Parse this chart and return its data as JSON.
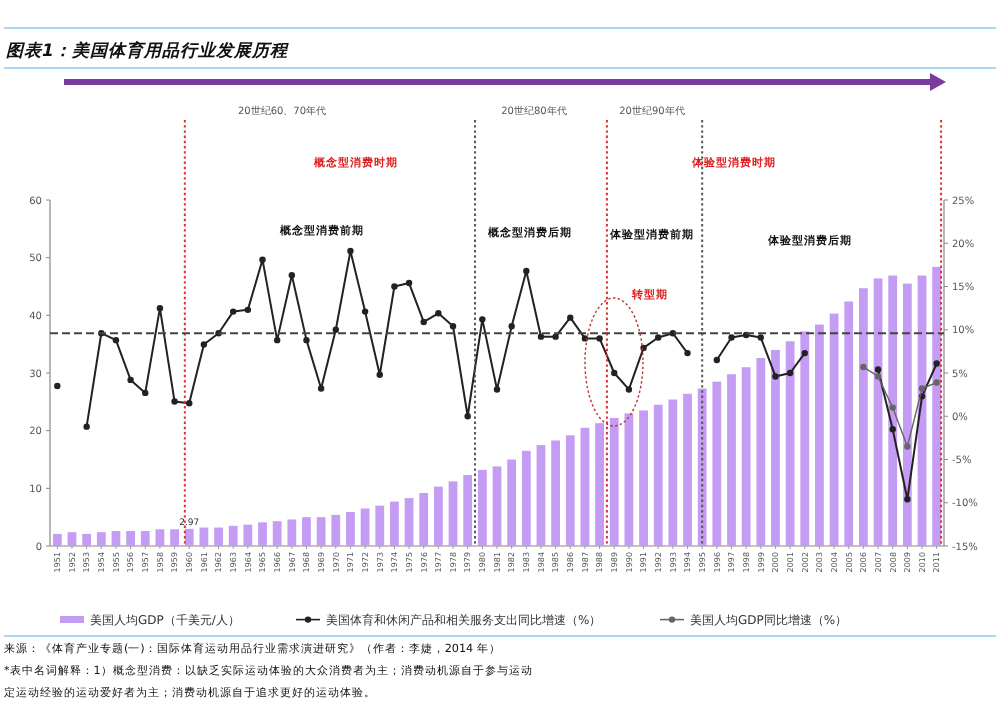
{
  "chart_data": {
    "type": "bar",
    "title": "图表1：美国体育用品行业发展历程",
    "annotations": [
      "20世纪60、70年代",
      "20世纪80年代",
      "20世纪90年代",
      "概念型消费时期",
      "体验型消费时期",
      "概念型消费前期",
      "概念型消费后期",
      "体验型消费前期",
      "体验型消费后期",
      "转型期",
      "来源：《体育产业专题(一)：国际体育运动用品行业需求演进研究》（作者：李婕，2014 年）",
      "*表中名词解释：1）概念型消费：以缺乏实际运动体验的大众消费者为主；消费动机源自于参与运动",
      "定运动经验的运动爱好者为主；消费动机源自于追求更好的运动体验。"
    ],
    "x": [
      1951,
      1952,
      1953,
      1954,
      1955,
      1956,
      1957,
      1958,
      1959,
      1960,
      1961,
      1962,
      1963,
      1964,
      1965,
      1966,
      1967,
      1968,
      1969,
      1970,
      1971,
      1972,
      1973,
      1974,
      1975,
      1976,
      1977,
      1978,
      1979,
      1980,
      1981,
      1982,
      1983,
      1984,
      1985,
      1986,
      1987,
      1988,
      1989,
      1990,
      1991,
      1992,
      1993,
      1994,
      1995,
      1996,
      1997,
      1998,
      1999,
      2000,
      2001,
      2002,
      2003,
      2004,
      2005,
      2006,
      2007,
      2008,
      2009,
      2010,
      2011
    ],
    "xlim": [
      1950.5,
      2011.5
    ],
    "xticks": [
      1951,
      1952,
      1953,
      1954,
      1955,
      1956,
      1957,
      1958,
      1959,
      1960,
      1961,
      1962,
      1963,
      1964,
      1965,
      1966,
      1967,
      1968,
      1969,
      1970,
      1971,
      1972,
      1973,
      1974,
      1975,
      1976,
      1977,
      1978,
      1979,
      1980,
      1981,
      1982,
      1983,
      1984,
      1985,
      1986,
      1987,
      1988,
      1989,
      1990,
      1991,
      1992,
      1993,
      1994,
      1995,
      1996,
      1997,
      1998,
      1999,
      2000,
      2001,
      2002,
      2003,
      2004,
      2005,
      2006,
      2007,
      2008,
      2009,
      2010,
      2011
    ],
    "ylim": [
      0,
      60
    ],
    "yticks": [
      0,
      10,
      20,
      30,
      40,
      50,
      60
    ],
    "y2lim": [
      -15,
      25
    ],
    "y2ticks": [
      {
        "value": -15,
        "label": "-15%"
      },
      {
        "value": -10,
        "label": "-10%"
      },
      {
        "value": -5,
        "label": "-5%"
      },
      {
        "value": 0,
        "label": "0%"
      },
      {
        "value": 5,
        "label": "5%"
      },
      {
        "value": 10,
        "label": "10%"
      },
      {
        "value": 15,
        "label": "15%"
      },
      {
        "value": 20,
        "label": "20%"
      },
      {
        "value": 25,
        "label": "25%"
      }
    ],
    "legend": "bottom",
    "marker": "circle",
    "ref_lines": [
      {
        "axis": "x",
        "value": 1959.7,
        "color": "#e03030",
        "line_style": "dotted"
      },
      {
        "axis": "x",
        "value": 1979.5,
        "color": "#555555",
        "line_style": "dotted"
      },
      {
        "axis": "x",
        "value": 1988.5,
        "color": "#e03030",
        "line_style": "dotted"
      },
      {
        "axis": "x",
        "value": 1995,
        "color": "#555555",
        "line_style": "dotted"
      },
      {
        "axis": "x",
        "value": 2011.3,
        "color": "#e03030",
        "line_style": "dotted"
      },
      {
        "axis": "y2",
        "value": 9.6,
        "color": "#444444",
        "line_style": "dashed"
      }
    ],
    "series": [
      {
        "name": "美国人均GDP（千美元/人）",
        "color": "#c49cf3",
        "values": [
          2.1,
          2.4,
          2.1,
          2.4,
          2.6,
          2.6,
          2.6,
          2.9,
          2.9,
          2.97,
          3.2,
          3.2,
          3.5,
          3.7,
          4.1,
          4.3,
          4.6,
          5.0,
          5.0,
          5.4,
          5.9,
          6.5,
          7.0,
          7.7,
          8.3,
          9.2,
          10.3,
          11.2,
          12.3,
          13.2,
          13.8,
          15.0,
          16.5,
          17.5,
          18.3,
          19.2,
          20.5,
          21.3,
          22.2,
          23.0,
          23.5,
          24.5,
          25.4,
          26.4,
          27.3,
          28.5,
          29.8,
          31.0,
          32.6,
          34.0,
          35.5,
          37.2,
          38.4,
          40.3,
          42.4,
          44.7,
          46.4,
          46.9,
          45.5,
          46.9,
          48.4
        ],
        "value_labels": [
          null,
          null,
          null,
          null,
          null,
          null,
          null,
          null,
          null,
          "2.97",
          null,
          null,
          null,
          null,
          null,
          null,
          null,
          null,
          null,
          null,
          null,
          null,
          null,
          null,
          null,
          null,
          null,
          null,
          null,
          null,
          null,
          null,
          null,
          null,
          null,
          null,
          null,
          null,
          null,
          null,
          null,
          null,
          null,
          null,
          null,
          null,
          null,
          null,
          null,
          null,
          null,
          null,
          null,
          null,
          null,
          null,
          null,
          null,
          null,
          null,
          null
        ]
      },
      {
        "name": "美国体育和休闲产品和相关服务支出同比增速（%）",
        "type": "line",
        "axis": "y2",
        "color": "#222222",
        "values": [
          3.5,
          null,
          -1.2,
          9.6,
          8.8,
          4.2,
          2.7,
          12.5,
          1.7,
          1.5,
          8.3,
          9.6,
          12.1,
          12.3,
          18.1,
          8.8,
          16.3,
          8.8,
          3.2,
          10,
          19.1,
          12.1,
          4.8,
          15,
          15.4,
          10.9,
          11.9,
          10.4,
          0,
          11.2,
          3.1,
          10.4,
          16.8,
          9.2,
          9.2,
          11.4,
          9.0,
          9.0,
          5.0,
          3.1,
          7.9,
          9.1,
          9.6,
          7.3,
          null,
          6.5,
          9.1,
          9.4,
          9.1,
          4.6,
          5.0,
          7.3,
          null,
          null,
          null,
          null,
          5.4,
          -1.5,
          -9.6,
          2.3,
          6.1
        ]
      },
      {
        "name": "美国人均GDP同比增速（%）",
        "type": "line",
        "axis": "y2",
        "color": "#666666",
        "values": [
          null,
          null,
          null,
          null,
          null,
          null,
          null,
          null,
          null,
          null,
          null,
          null,
          null,
          null,
          null,
          null,
          null,
          null,
          null,
          null,
          null,
          null,
          null,
          null,
          null,
          null,
          null,
          null,
          null,
          null,
          null,
          null,
          null,
          null,
          null,
          null,
          null,
          null,
          null,
          null,
          null,
          null,
          null,
          null,
          null,
          null,
          null,
          null,
          null,
          null,
          null,
          null,
          null,
          null,
          null,
          5.7,
          4.6,
          1.0,
          -3.5,
          3.2,
          3.9
        ]
      }
    ]
  }
}
